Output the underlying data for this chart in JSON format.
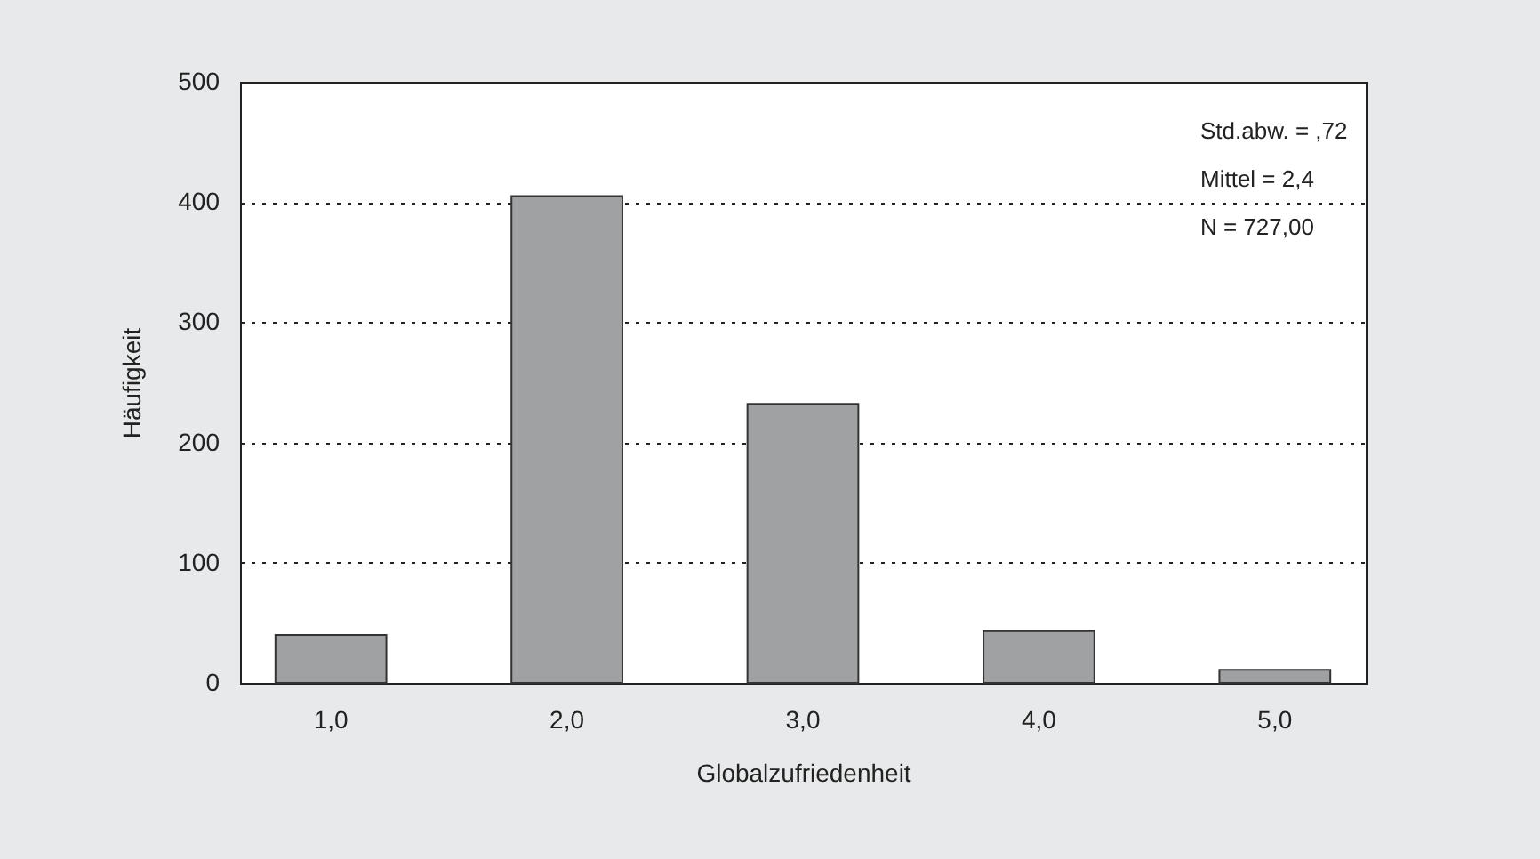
{
  "chart_data": {
    "type": "bar",
    "xlabel": "Globalzufriedenheit",
    "ylabel": "Häufigkeit",
    "categories": [
      "1,0",
      "2,0",
      "3,0",
      "4,0",
      "5,0"
    ],
    "values": [
      40,
      405,
      232,
      43,
      11
    ],
    "color": "#a0a1a3",
    "ylim": [
      0,
      500
    ],
    "yticks": [
      0,
      100,
      200,
      300,
      400,
      500
    ],
    "grid": "y",
    "annotations": [
      "Std.abw. = ,72",
      "Mittel = 2,4",
      "N = 727,00"
    ]
  }
}
